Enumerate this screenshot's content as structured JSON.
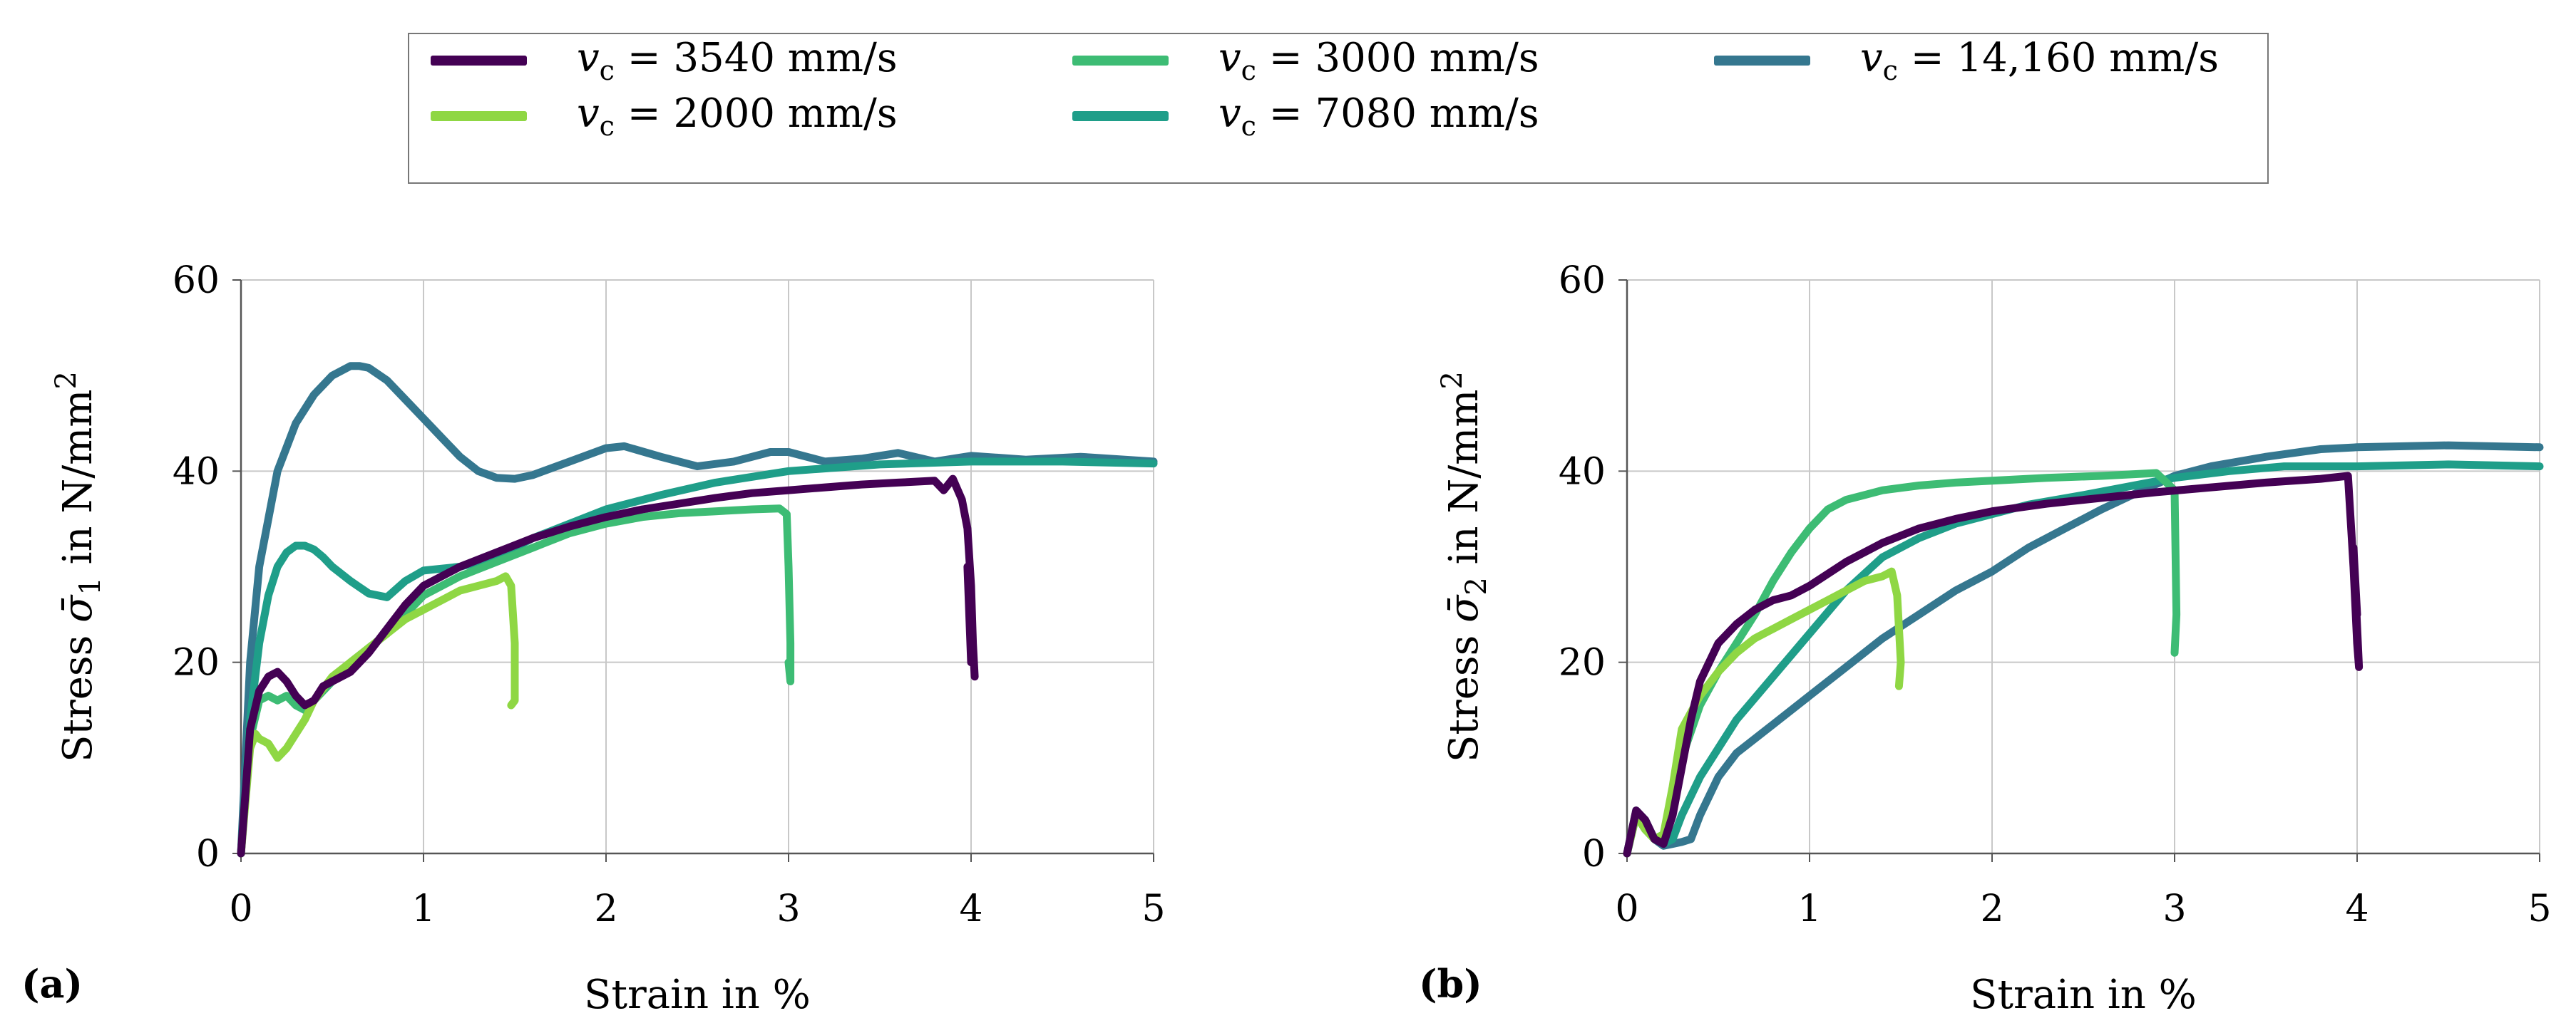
{
  "legend": {
    "items": [
      {
        "symbol": "v",
        "subscript": "c",
        "text": " = 3540 mm/s",
        "color": "#440154"
      },
      {
        "symbol": "v",
        "subscript": "c",
        "text": " = 2000 mm/s",
        "color": "#8fd744"
      },
      {
        "symbol": "v",
        "subscript": "c",
        "text": " = 3000 mm/s",
        "color": "#3dbc74"
      },
      {
        "symbol": "v",
        "subscript": "c",
        "text": " = 7080 mm/s",
        "color": "#1f9e89"
      },
      {
        "symbol": "v",
        "subscript": "c",
        "text": " = 14,160 mm/s",
        "color": "#35778f"
      }
    ]
  },
  "chart_data": [
    {
      "type": "line",
      "panel_label": "(a)",
      "xlabel": "Strain in %",
      "ylabel_prefix": "Stress ",
      "ylabel_symbol": "σ̄",
      "ylabel_subscript": "1",
      "ylabel_suffix": " in N/mm",
      "ylabel_superscript": "2",
      "xlim": [
        0,
        5
      ],
      "ylim": [
        0,
        60
      ],
      "xticks": [
        "0",
        "1",
        "2",
        "3",
        "4",
        "5"
      ],
      "yticks": [
        "0",
        "20",
        "40",
        "60"
      ],
      "grid": true,
      "series": [
        {
          "name": "v_c = 14,160 mm/s",
          "color": "#35778f",
          "x": [
            0,
            0.05,
            0.1,
            0.2,
            0.3,
            0.4,
            0.5,
            0.6,
            0.65,
            0.7,
            0.8,
            0.9,
            1.0,
            1.1,
            1.2,
            1.3,
            1.4,
            1.5,
            1.6,
            1.8,
            2.0,
            2.1,
            2.3,
            2.5,
            2.7,
            2.9,
            3.0,
            3.2,
            3.4,
            3.6,
            3.8,
            4.0,
            4.3,
            4.6,
            5.0
          ],
          "y": [
            0,
            20,
            30,
            40,
            45,
            48,
            50,
            51,
            51,
            50.8,
            49.5,
            47.5,
            45.5,
            43.5,
            41.5,
            40,
            39.3,
            39.2,
            39.6,
            41,
            42.4,
            42.6,
            41.5,
            40.5,
            41,
            42,
            42,
            41,
            41.3,
            41.9,
            41,
            41.6,
            41.2,
            41.5,
            41
          ]
        },
        {
          "name": "v_c = 7080 mm/s",
          "color": "#1f9e89",
          "x": [
            0,
            0.05,
            0.1,
            0.15,
            0.2,
            0.25,
            0.3,
            0.35,
            0.4,
            0.45,
            0.5,
            0.6,
            0.7,
            0.8,
            0.9,
            1.0,
            1.1,
            1.2,
            1.4,
            1.6,
            1.8,
            2.0,
            2.3,
            2.6,
            3.0,
            3.5,
            4.0,
            4.5,
            5.0
          ],
          "y": [
            0,
            14,
            22,
            27,
            30,
            31.5,
            32.2,
            32.2,
            31.8,
            31,
            30,
            28.5,
            27.2,
            26.8,
            28.5,
            29.6,
            29.8,
            30,
            31,
            33,
            34.5,
            36,
            37.5,
            38.8,
            40,
            40.7,
            41,
            41,
            40.8
          ]
        },
        {
          "name": "v_c = 3000 mm/s",
          "color": "#3dbc74",
          "x": [
            0,
            0.05,
            0.1,
            0.15,
            0.2,
            0.25,
            0.3,
            0.35,
            0.4,
            0.5,
            0.6,
            0.7,
            0.8,
            0.9,
            1.0,
            1.2,
            1.4,
            1.6,
            1.8,
            2.0,
            2.2,
            2.4,
            2.6,
            2.8,
            2.95,
            2.99,
            3.0,
            3.01,
            3.01,
            3.0
          ],
          "y": [
            0,
            12,
            16,
            16.5,
            16,
            16.5,
            15.5,
            15,
            16,
            18,
            20,
            21.5,
            23,
            25,
            27,
            29,
            30.5,
            32,
            33.5,
            34.5,
            35.2,
            35.6,
            35.8,
            36,
            36.1,
            35.5,
            30,
            22,
            18,
            20
          ]
        },
        {
          "name": "v_c = 2000 mm/s",
          "color": "#8fd744",
          "x": [
            0,
            0.05,
            0.08,
            0.1,
            0.15,
            0.2,
            0.25,
            0.3,
            0.35,
            0.4,
            0.5,
            0.6,
            0.7,
            0.8,
            0.9,
            1.0,
            1.1,
            1.2,
            1.3,
            1.4,
            1.45,
            1.48,
            1.5,
            1.5,
            1.48
          ],
          "y": [
            0,
            11,
            12.5,
            12,
            11.5,
            10,
            11,
            12.5,
            14,
            16,
            18.5,
            20,
            21.5,
            23,
            24.5,
            25.5,
            26.5,
            27.5,
            28,
            28.5,
            29,
            28,
            22,
            16,
            15.5
          ]
        },
        {
          "name": "v_c = 3540 mm/s",
          "color": "#440154",
          "x": [
            0,
            0.05,
            0.1,
            0.15,
            0.2,
            0.25,
            0.3,
            0.35,
            0.4,
            0.45,
            0.5,
            0.6,
            0.7,
            0.8,
            0.9,
            1.0,
            1.2,
            1.4,
            1.6,
            1.8,
            2.0,
            2.2,
            2.4,
            2.6,
            2.8,
            3.0,
            3.2,
            3.4,
            3.6,
            3.8,
            3.85,
            3.9,
            3.95,
            3.98,
            4.0,
            4.01,
            4.02,
            4.0,
            3.98,
            4.0
          ],
          "y": [
            0,
            13,
            17,
            18.5,
            19,
            18,
            16.5,
            15.5,
            16,
            17.5,
            18,
            19,
            21,
            23.5,
            26,
            28,
            30,
            31.5,
            33,
            34.2,
            35.2,
            36,
            36.6,
            37.2,
            37.7,
            38,
            38.3,
            38.6,
            38.8,
            39,
            38,
            39.2,
            37,
            34,
            28,
            22,
            18.5,
            25,
            30,
            20
          ]
        }
      ]
    },
    {
      "type": "line",
      "panel_label": "(b)",
      "xlabel": "Strain in %",
      "ylabel_prefix": "Stress ",
      "ylabel_symbol": "σ̄",
      "ylabel_subscript": "2",
      "ylabel_suffix": " in N/mm",
      "ylabel_superscript": "2",
      "xlim": [
        0,
        5
      ],
      "ylim": [
        0,
        60
      ],
      "xticks": [
        "0",
        "1",
        "2",
        "3",
        "4",
        "5"
      ],
      "yticks": [
        "0",
        "20",
        "40",
        "60"
      ],
      "grid": true,
      "series": [
        {
          "name": "v_c = 14,160 mm/s",
          "color": "#35778f",
          "x": [
            0,
            0.05,
            0.1,
            0.15,
            0.2,
            0.25,
            0.3,
            0.35,
            0.4,
            0.5,
            0.6,
            0.8,
            1.0,
            1.2,
            1.4,
            1.6,
            1.8,
            2.0,
            2.2,
            2.4,
            2.6,
            2.8,
            3.0,
            3.2,
            3.5,
            3.8,
            4.0,
            4.5,
            5.0
          ],
          "y": [
            0,
            4.5,
            3.5,
            1.5,
            0.8,
            1,
            1.2,
            1.5,
            4,
            8,
            10.5,
            13.5,
            16.5,
            19.5,
            22.5,
            25,
            27.5,
            29.5,
            32,
            34,
            36,
            37.8,
            39.5,
            40.5,
            41.5,
            42.3,
            42.5,
            42.7,
            42.5
          ]
        },
        {
          "name": "v_c = 7080 mm/s",
          "color": "#1f9e89",
          "x": [
            0,
            0.05,
            0.1,
            0.15,
            0.2,
            0.25,
            0.3,
            0.4,
            0.5,
            0.6,
            0.8,
            1.0,
            1.2,
            1.4,
            1.6,
            1.8,
            2.0,
            2.2,
            2.5,
            3.0,
            3.3,
            3.6,
            4.0,
            4.5,
            5.0
          ],
          "y": [
            0,
            4,
            3,
            1.5,
            1,
            1.5,
            4,
            8,
            11,
            14,
            18.5,
            23,
            27.5,
            31,
            33,
            34.5,
            35.5,
            36.5,
            37.5,
            39.3,
            40,
            40.5,
            40.5,
            40.7,
            40.5
          ]
        },
        {
          "name": "v_c = 3000 mm/s",
          "color": "#3dbc74",
          "x": [
            0,
            0.05,
            0.1,
            0.15,
            0.2,
            0.25,
            0.3,
            0.4,
            0.5,
            0.6,
            0.7,
            0.8,
            0.9,
            1.0,
            1.1,
            1.2,
            1.3,
            1.4,
            1.6,
            1.8,
            2.0,
            2.3,
            2.6,
            2.9,
            3.0,
            3.01,
            3.0
          ],
          "y": [
            0,
            4,
            2.5,
            1.5,
            2,
            5,
            10,
            15.5,
            19,
            22,
            25,
            28.5,
            31.5,
            34,
            36,
            37,
            37.5,
            38,
            38.5,
            38.8,
            39,
            39.3,
            39.5,
            39.8,
            38,
            25,
            21
          ]
        },
        {
          "name": "v_c = 2000 mm/s",
          "color": "#8fd744",
          "x": [
            0,
            0.05,
            0.1,
            0.15,
            0.2,
            0.25,
            0.3,
            0.4,
            0.5,
            0.6,
            0.7,
            0.8,
            0.9,
            1.0,
            1.1,
            1.2,
            1.3,
            1.4,
            1.45,
            1.48,
            1.5,
            1.49
          ],
          "y": [
            0,
            4,
            2.5,
            1.5,
            2,
            7,
            13,
            16.5,
            19,
            21,
            22.5,
            23.5,
            24.5,
            25.5,
            26.5,
            27.5,
            28.5,
            29,
            29.5,
            27,
            20,
            17.5
          ]
        },
        {
          "name": "v_c = 3540 mm/s",
          "color": "#440154",
          "x": [
            0,
            0.05,
            0.1,
            0.15,
            0.2,
            0.25,
            0.3,
            0.35,
            0.4,
            0.5,
            0.6,
            0.7,
            0.8,
            0.9,
            1.0,
            1.2,
            1.4,
            1.6,
            1.8,
            2.0,
            2.3,
            2.6,
            2.9,
            3.2,
            3.5,
            3.8,
            3.95,
            3.98,
            4.0,
            4.01,
            3.98,
            4.0
          ],
          "y": [
            0,
            4.5,
            3.5,
            1.5,
            1,
            4,
            9,
            14,
            18,
            22,
            24,
            25.5,
            26.5,
            27,
            28,
            30.5,
            32.5,
            34,
            35,
            35.8,
            36.6,
            37.2,
            37.8,
            38.3,
            38.8,
            39.2,
            39.5,
            30,
            22,
            19.5,
            32,
            25
          ]
        }
      ]
    }
  ]
}
